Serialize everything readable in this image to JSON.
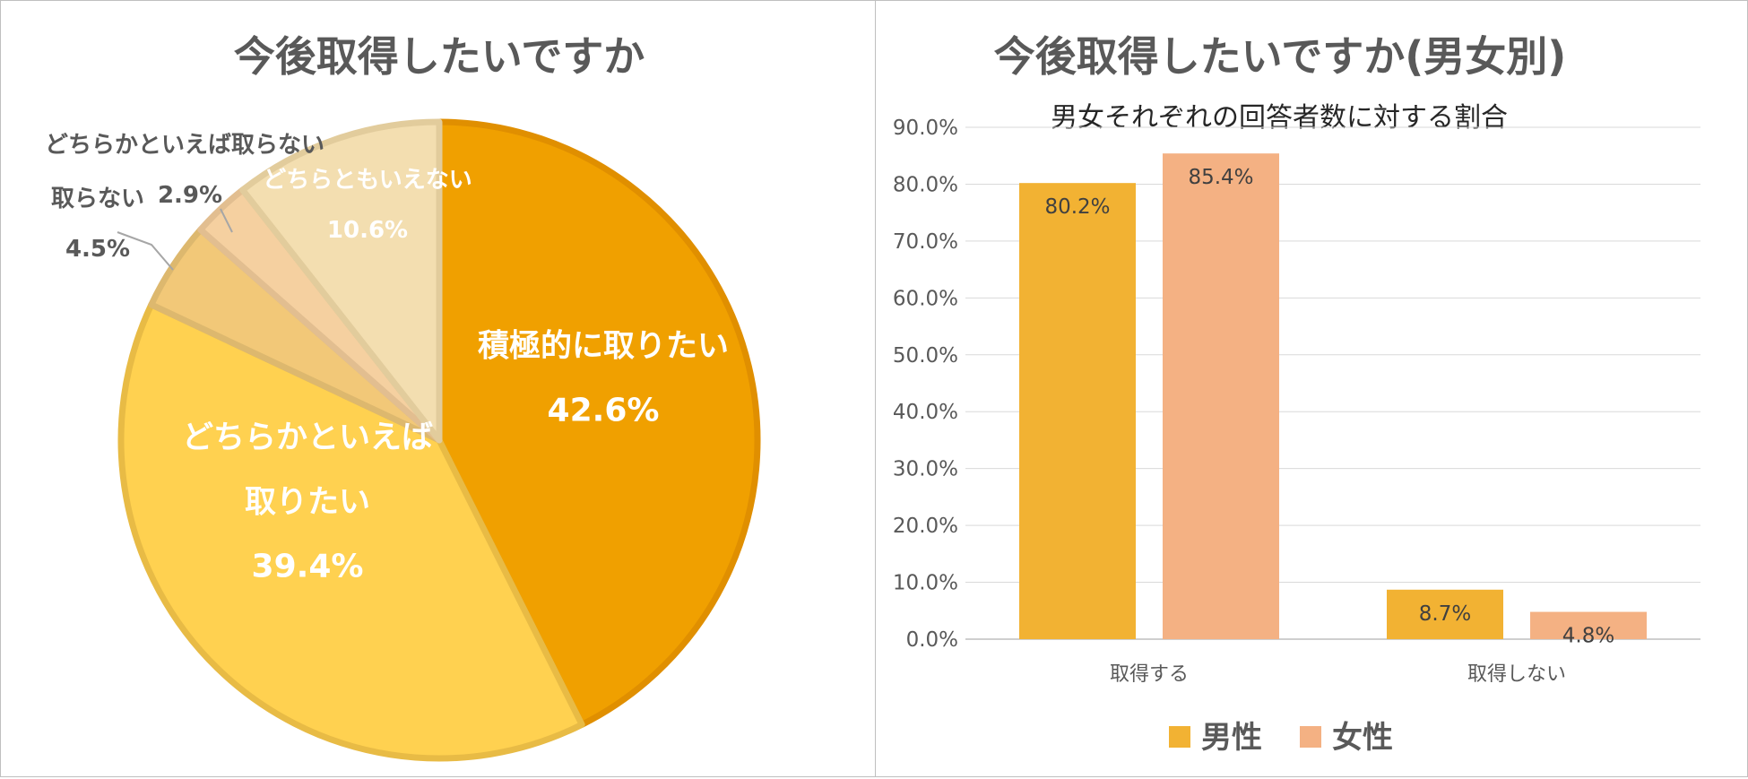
{
  "chart_data": [
    {
      "type": "pie",
      "title": "今後取得したいですか",
      "slices": [
        {
          "label": "積極的に取りたい",
          "label_lines": [
            "積極的に取りたい"
          ],
          "value": 42.6,
          "value_label": "42.6%",
          "color": "#F0A000",
          "border": "#E08F00"
        },
        {
          "label": "どちらかといえば取りたい",
          "label_lines": [
            "どちらかといえば",
            "取りたい"
          ],
          "value": 39.4,
          "value_label": "39.4%",
          "color": "#FFD150",
          "border": "#E8BB45"
        },
        {
          "label": "取らない",
          "label_lines": [
            "取らない"
          ],
          "value": 4.5,
          "value_label": "4.5%",
          "color": "#F2C878",
          "border": "#DDB86E"
        },
        {
          "label": "どちらかといえば取らない",
          "label_lines": [
            "どちらかといえば取らない"
          ],
          "value": 2.9,
          "value_label": "2.9%",
          "color": "#F5D0A0",
          "border": "#E2BE90"
        },
        {
          "label": "どちらともいえない",
          "label_lines": [
            "どちらともいえない"
          ],
          "value": 10.6,
          "value_label": "10.6%",
          "color": "#F3DEB0",
          "border": "#E2CC9C"
        }
      ]
    },
    {
      "type": "bar",
      "title": "今後取得したいですか(男女別)",
      "subtitle": "男女それぞれの回答者数に対する割合",
      "categories": [
        "取得する",
        "取得しない"
      ],
      "series": [
        {
          "name": "男性",
          "values": [
            80.2,
            8.7
          ],
          "value_labels": [
            "80.2%",
            "8.7%"
          ],
          "color": "#F2B233"
        },
        {
          "name": "女性",
          "values": [
            85.4,
            4.8
          ],
          "value_labels": [
            "85.4%",
            "4.8%"
          ],
          "color": "#F4B183"
        }
      ],
      "ylim": [
        0,
        90
      ],
      "yticks": [
        "0.0%",
        "10.0%",
        "20.0%",
        "30.0%",
        "40.0%",
        "50.0%",
        "60.0%",
        "70.0%",
        "80.0%",
        "90.0%"
      ],
      "grid": true,
      "legend": "bottom"
    }
  ]
}
